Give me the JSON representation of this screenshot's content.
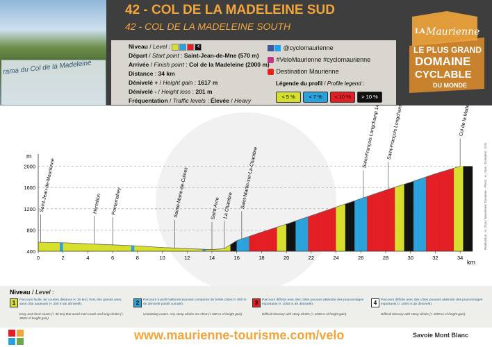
{
  "header": {
    "title": "42 - COL DE LA MADELEINE SUD",
    "subtitle": "42 - COL DE LA MADELEINE SOUTH",
    "panorama_caption": "rama du Col de la Madeleine"
  },
  "info": {
    "niveau_label": "Niveau",
    "niveau_en": "Level",
    "level_value": "4",
    "depart_label": "Départ",
    "depart_en": "Start point",
    "depart_value": "Saint-Jean-de-Mne (570 m)",
    "arrivee_label": "Arrivée",
    "arrivee_en": "Finish point",
    "arrivee_value": "Col de la Madeleine (2000 m)",
    "distance_label": "Distance",
    "distance_value": "34 km",
    "gain_label": "Dénivelé +",
    "gain_en": "Height gain",
    "gain_value": "1617 m",
    "loss_label": "Dénivelé -",
    "loss_en": "Height loss",
    "loss_value": "201 m",
    "freq_label": "Fréquentation",
    "freq_en": "Traffic levels",
    "freq_value": "Élevée",
    "freq_value_en": "Heavy"
  },
  "social": {
    "handle": "@cyclomaurienne",
    "hashtags": "#VeloMaurienne #cyclomaurienne",
    "destination": "Destination Maurienne"
  },
  "profile_legend": {
    "title": "Légende du profil",
    "title_en": "Profile legend",
    "items": [
      {
        "label": "< 5 %",
        "color": "#d6df2c",
        "text_color": "#111111"
      },
      {
        "label": "< 7 %",
        "color": "#2aa3dc",
        "text_color": "#111111"
      },
      {
        "label": "< 10 %",
        "color": "#e31e24",
        "text_color": "#111111"
      },
      {
        "label": "> 10 %",
        "color": "#111111",
        "text_color": "#ffffff"
      }
    ]
  },
  "logo": {
    "line1": "LA",
    "line2": "Maurienne",
    "line3": "LE PLUS GRAND",
    "line4": "DOMAINE",
    "line5": "CYCLABLE",
    "line6": "DU MONDE"
  },
  "chart_data": {
    "type": "area",
    "ylabel": "m",
    "xlabel": "km",
    "ylim": [
      400,
      2100
    ],
    "xlim": [
      0,
      35
    ],
    "y_ticks": [
      400,
      800,
      1200,
      1600,
      2000
    ],
    "x_ticks": [
      0,
      2,
      4,
      6,
      8,
      10,
      12,
      14,
      16,
      18,
      20,
      22,
      24,
      26,
      28,
      30,
      32,
      34
    ],
    "x": [
      0,
      2,
      4,
      6,
      8,
      10,
      12,
      14,
      15,
      16,
      18,
      20,
      22,
      24,
      26,
      28,
      30,
      32,
      34
    ],
    "y": [
      570,
      560,
      540,
      520,
      500,
      470,
      450,
      430,
      450,
      600,
      760,
      910,
      1070,
      1230,
      1390,
      1550,
      1700,
      1860,
      2000
    ],
    "annotations": [
      {
        "label": "Saint-Jean-de-Maurienne",
        "km": 0.2,
        "alt": 570
      },
      {
        "label": "Hermillon",
        "km": 4.5,
        "alt": 540
      },
      {
        "label": "Pontamafrey",
        "km": 6.0,
        "alt": 520
      },
      {
        "label": "Sainte-Marie-de-Cuines",
        "km": 11.0,
        "alt": 465
      },
      {
        "label": "Saint-Avre",
        "km": 14.0,
        "alt": 430
      },
      {
        "label": "La Chambre",
        "km": 15.0,
        "alt": 450
      },
      {
        "label": "Saint-Martin-sur-La-Chambre",
        "km": 16.4,
        "alt": 630
      },
      {
        "label": "Saint-François Longchamp 1450",
        "km": 26.2,
        "alt": 1400
      },
      {
        "label": "Saint-François Longchamp 1650",
        "km": 28.2,
        "alt": 1560
      },
      {
        "label": "Col de la Madeleine",
        "km": 34,
        "alt": 2000
      }
    ],
    "segment_colors": [
      "#d6df2c",
      "#2aa3dc",
      "#e31e24",
      "#111111"
    ]
  },
  "levels": {
    "title": "Niveau",
    "title_en": "Level",
    "items": [
      {
        "num": "1",
        "color": "#d6df2c",
        "fr": "Parcours facile, de courtes distance (< 30 km), hors des grands axes, sans côte sauteuse (< 300 m de dénivelé).",
        "en": "Easy and short routes (< 30 km) that avoid main roads and long climbs (< 300m of height gain)"
      },
      {
        "num": "2",
        "color": "#2aa3dc",
        "fr": "Parcours à profil vallonné pouvant comporter de fortes côtes (< 600 m de dénivelé positif cumulé).",
        "en": "Undulating routes. Any steep climbs are short (< 600 m of height gain)"
      },
      {
        "num": "3",
        "color": "#e31e24",
        "fr": "Parcours difficile avec des côtes pouvant atteindre des pourcentages importants (< 1000 m de dénivelé).",
        "en": "Difficult itinerary with steep climbs (< 1000 m of height gain)"
      },
      {
        "num": "4",
        "color": "#ffffff",
        "fr": "Parcours difficile avec des côtes pouvant atteindre des pourcentages importants (> 1000 m de dénivelé).",
        "en": "Difficult itinerary with steep climbs (> 1000 m of height gain)"
      }
    ]
  },
  "footer": {
    "url": "www.maurienne-tourisme.com/velo",
    "brand": "Savoie Mont Blanc",
    "credits": "Réalisation : A. Gras / Maurienne Tourisme - Photo : A. Gras - Données : IGN"
  }
}
